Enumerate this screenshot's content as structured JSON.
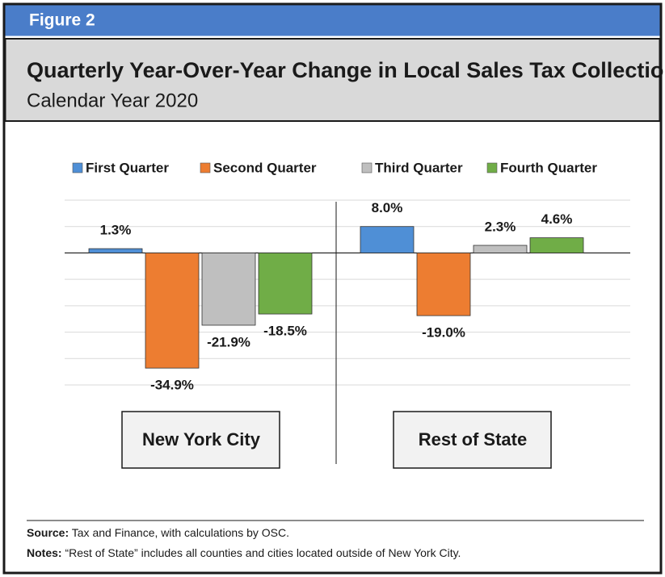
{
  "chart_data": {
    "type": "bar",
    "figure_label": "Figure 2",
    "title": "Quarterly Year-Over-Year Change in Local Sales Tax Collections,",
    "subtitle": "Calendar Year 2020",
    "categories": [
      "New York City",
      "Rest of State"
    ],
    "series": [
      {
        "name": "First Quarter",
        "color": "#4f8fd6",
        "values": [
          1.3,
          8.0
        ],
        "value_labels": [
          "1.3%",
          "8.0%"
        ]
      },
      {
        "name": "Second Quarter",
        "color": "#ed7d31",
        "values": [
          -34.9,
          -19.0
        ],
        "value_labels": [
          "-34.9%",
          "-19.0%"
        ]
      },
      {
        "name": "Third Quarter",
        "color": "#bfbfbf",
        "values": [
          -21.9,
          2.3
        ],
        "value_labels": [
          "-21.9%",
          "2.3%"
        ]
      },
      {
        "name": "Fourth Quarter",
        "color": "#70ad47",
        "values": [
          -18.5,
          4.6
        ],
        "value_labels": [
          "-18.5%",
          "4.6%"
        ]
      }
    ],
    "ylim": [
      -40,
      16
    ],
    "yticks": [
      -40,
      -32,
      -24,
      -16,
      -8,
      0,
      8,
      16
    ],
    "grid": true,
    "source": {
      "label": "Source:",
      "text": "Tax and Finance, with calculations by OSC."
    },
    "notes": {
      "label": "Notes:",
      "text": "“Rest of State” includes all counties and cities located outside of New York City."
    }
  }
}
